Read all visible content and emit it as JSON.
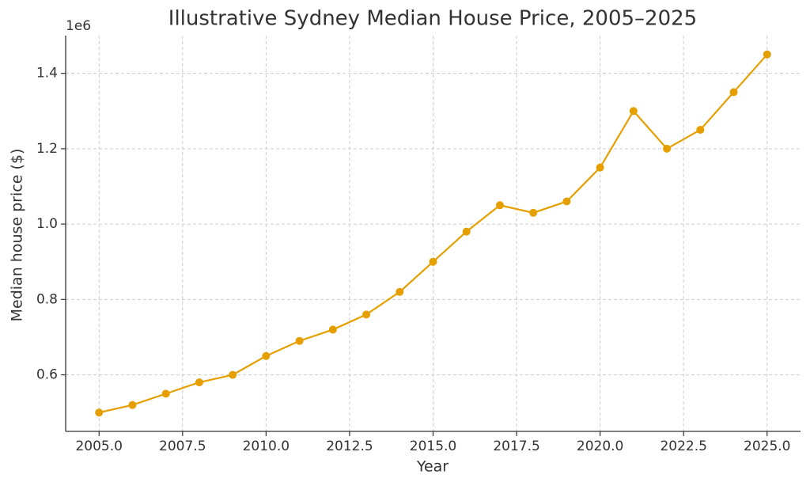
{
  "chart_data": {
    "type": "line",
    "title": "Illustrative Sydney Median House Price, 2005–2025",
    "x_label": "Year",
    "y_label": "Median house price ($)",
    "y_offset_label": "1e6",
    "x": [
      2005,
      2006,
      2007,
      2008,
      2009,
      2010,
      2011,
      2012,
      2013,
      2014,
      2015,
      2016,
      2017,
      2018,
      2019,
      2020,
      2021,
      2022,
      2023,
      2024,
      2025
    ],
    "values": [
      500000,
      520000,
      550000,
      580000,
      600000,
      650000,
      690000,
      720000,
      760000,
      820000,
      900000,
      980000,
      1050000,
      1030000,
      1060000,
      1150000,
      1300000,
      1200000,
      1250000,
      1350000,
      1450000
    ],
    "color": "#e69f00",
    "xlim": [
      2004,
      2026
    ],
    "ylim": [
      450000,
      1500000
    ],
    "xticks": [
      {
        "value": 2005,
        "label": "2005.0"
      },
      2007.5,
      {
        "value": 2010,
        "label": "2010.0"
      },
      2012.5,
      {
        "value": 2015,
        "label": "2015.0"
      },
      2017.5,
      {
        "value": 2020,
        "label": "2020.0"
      },
      2022.5,
      {
        "value": 2025,
        "label": "2025.0"
      }
    ],
    "yticks": [
      {
        "value": 600000,
        "label": "0.6"
      },
      {
        "value": 800000,
        "label": "0.8"
      },
      {
        "value": 1000000,
        "label": "1.0"
      },
      {
        "value": 1200000,
        "label": "1.2"
      },
      {
        "value": 1400000,
        "label": "1.4"
      }
    ],
    "grid": true
  }
}
